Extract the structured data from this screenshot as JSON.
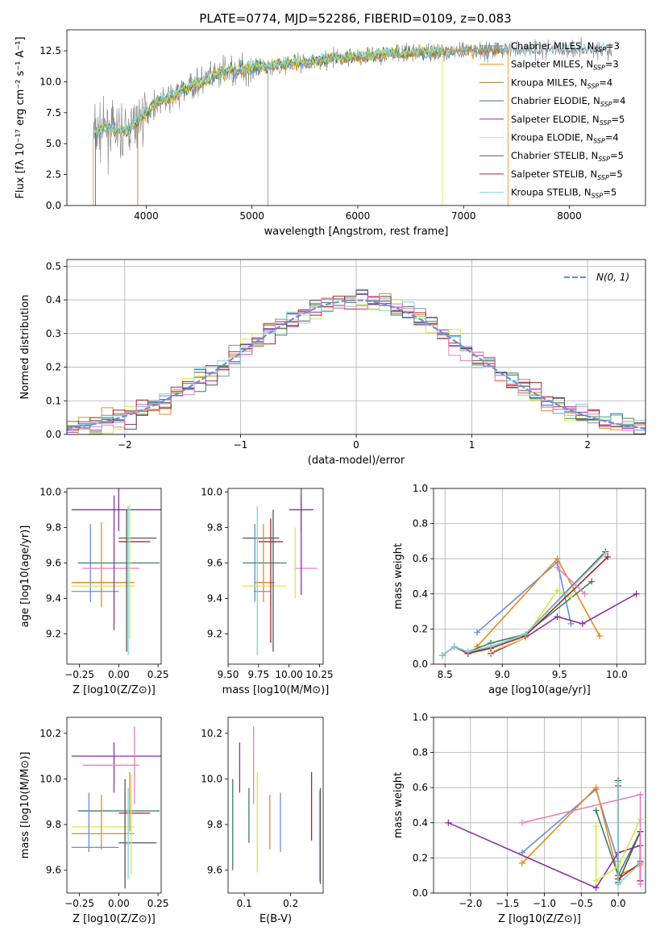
{
  "figure_title": "PLATE=0774, MJD=52286, FIBERID=0109, z=0.083",
  "colors": {
    "Chabrier MILES": "#6a8fd8",
    "Salpeter MILES": "#e8891f",
    "Kroupa MILES": "#a07a2a",
    "Chabrier ELODIE": "#3f7f5f",
    "Salpeter ELODIE": "#8e2fa8",
    "Kroupa ELODIE": "#d7e84a",
    "Chabrier STELIB": "#555555",
    "Salpeter STELIB": "#b22222",
    "Kroupa STELIB": "#7fd3d9",
    "data": "#8c8c8c",
    "pink": "#e87fbf",
    "gaussian": "#6a8fd8"
  },
  "chart_data": [
    {
      "id": "spectrum",
      "type": "line",
      "title": "PLATE=0774, MJD=52286, FIBERID=0109, z=0.083",
      "xlabel": "wavelength [Angstrom, rest frame]",
      "ylabel": "Flux [fλ 10⁻¹⁷ erg cm⁻² s⁻¹ A⁻¹]",
      "xlim": [
        3250,
        8720
      ],
      "ylim": [
        0,
        14.2
      ],
      "xticks": [
        4000,
        5000,
        6000,
        7000,
        8000
      ],
      "yticks": [
        0.0,
        2.5,
        5.0,
        7.5,
        10.0,
        12.5
      ],
      "grid": false,
      "legend_position": "right",
      "legend": [
        {
          "label": "Chabrier MILES, N",
          "sub": "SSP",
          "val": "=3"
        },
        {
          "label": "Salpeter MILES, N",
          "sub": "SSP",
          "val": "=3"
        },
        {
          "label": "Kroupa MILES, N",
          "sub": "SSP",
          "val": "=4"
        },
        {
          "label": "Chabrier ELODIE, N",
          "sub": "SSP",
          "val": "=4"
        },
        {
          "label": "Salpeter ELODIE, N",
          "sub": "SSP",
          "val": "=5"
        },
        {
          "label": "Kroupa ELODIE, N",
          "sub": "SSP",
          "val": "=4"
        },
        {
          "label": "Chabrier STELIB, N",
          "sub": "SSP",
          "val": "=5"
        },
        {
          "label": "Salpeter STELIB, N",
          "sub": "SSP",
          "val": "=5"
        },
        {
          "label": "Kroupa STELIB, N",
          "sub": "SSP",
          "val": "=5"
        }
      ],
      "continuum": {
        "x": [
          3500,
          3600,
          3700,
          3800,
          3900,
          4000,
          4100,
          4200,
          4300,
          4400,
          4500,
          4600,
          4700,
          4800,
          5000,
          5200,
          5500,
          5800,
          6100,
          6400,
          6700,
          7000,
          7400,
          7800,
          8200,
          8400
        ],
        "y": [
          5.8,
          6.2,
          6.0,
          5.9,
          6.6,
          7.5,
          8.4,
          8.6,
          9.0,
          9.6,
          9.9,
          10.3,
          10.7,
          10.9,
          11.1,
          11.3,
          11.6,
          11.9,
          12.1,
          12.3,
          12.4,
          12.5,
          12.6,
          12.6,
          12.6,
          12.5
        ]
      }
    },
    {
      "id": "residuals",
      "type": "histogram",
      "xlabel": "(data-model)/error",
      "ylabel": "Normed distribution",
      "xlim": [
        -2.5,
        2.5
      ],
      "ylim": [
        0,
        0.52
      ],
      "xticks": [
        -2,
        -1,
        0,
        1,
        2
      ],
      "yticks": [
        0.0,
        0.1,
        0.2,
        0.3,
        0.4,
        0.5
      ],
      "grid": true,
      "legend_position": "top-right",
      "gaussian_label": "N(0, 1)",
      "bin_width": 0.1
    },
    {
      "id": "age-vs-Z",
      "type": "errorbar",
      "xlabel": "Z [log10(Z/Z⊙)]",
      "ylabel": "age  [log10(age/yr)]",
      "xlim": [
        -0.33,
        0.27
      ],
      "ylim": [
        9.03,
        10.02
      ],
      "xticks": [
        -0.25,
        0.0,
        0.25
      ],
      "yticks": [
        9.2,
        9.4,
        9.6,
        9.8,
        10.0
      ],
      "points": [
        {
          "series": "Salpeter ELODIE",
          "x": 0.0,
          "y": 9.9,
          "xerr": 0.3,
          "yerr": 0.12
        },
        {
          "series": "Chabrier STELIB",
          "x": 0.12,
          "y": 9.74,
          "xerr": 0.12,
          "yerr": 0.0
        },
        {
          "series": "Salpeter STELIB",
          "x": 0.1,
          "y": 9.72,
          "xerr": 0.1,
          "yerr": 0.0
        },
        {
          "series": "Chabrier MILES",
          "x": -0.18,
          "y": 9.6,
          "xerr": 0.0,
          "yerr": 0.22
        },
        {
          "series": "Chabrier ELODIE",
          "x": 0.0,
          "y": 9.6,
          "xerr": 0.26,
          "yerr": 0.0
        },
        {
          "series": "Salpeter MILES",
          "x": -0.11,
          "y": 9.59,
          "xerr": 0.0,
          "yerr": 0.24
        },
        {
          "series": "pink",
          "x": -0.05,
          "y": 9.57,
          "xerr": 0.18,
          "yerr": 0.0
        },
        {
          "series": "Salpeter MILES",
          "x": -0.1,
          "y": 9.49,
          "xerr": 0.2,
          "yerr": 0.0
        },
        {
          "series": "Kroupa ELODIE",
          "x": -0.1,
          "y": 9.47,
          "xerr": 0.2,
          "yerr": 0.0
        },
        {
          "series": "Chabrier MILES",
          "x": -0.15,
          "y": 9.44,
          "xerr": 0.15,
          "yerr": 0.0
        },
        {
          "series": "Chabrier STELIB",
          "x": 0.05,
          "y": 9.5,
          "xerr": 0.0,
          "yerr": 0.4
        },
        {
          "series": "Kroupa STELIB",
          "x": 0.06,
          "y": 9.5,
          "xerr": 0.0,
          "yerr": 0.42
        },
        {
          "series": "Kroupa ELODIE",
          "x": 0.07,
          "y": 9.55,
          "xerr": 0.0,
          "yerr": 0.38
        },
        {
          "series": "Salpeter ELODIE",
          "x": -0.03,
          "y": 9.6,
          "xerr": 0.0,
          "yerr": 0.38
        }
      ]
    },
    {
      "id": "age-vs-mass",
      "type": "errorbar",
      "xlabel": "mass [log10(M/M⊙)]",
      "ylabel": "",
      "xlim": [
        9.5,
        10.28
      ],
      "ylim": [
        9.03,
        10.02
      ],
      "xticks": [
        9.5,
        9.75,
        10.0,
        10.25
      ],
      "yticks": [
        9.2,
        9.4,
        9.6,
        9.8,
        10.0
      ],
      "points": [
        {
          "series": "Salpeter ELODIE",
          "x": 10.1,
          "y": 9.9,
          "xerr": 0.1,
          "yerr": 0.12
        },
        {
          "series": "Chabrier STELIB",
          "x": 9.77,
          "y": 9.74,
          "xerr": 0.15,
          "yerr": 0.0
        },
        {
          "series": "Salpeter STELIB",
          "x": 9.85,
          "y": 9.72,
          "xerr": 0.1,
          "yerr": 0.0
        },
        {
          "series": "Chabrier MILES",
          "x": 9.72,
          "y": 9.6,
          "xerr": 0.0,
          "yerr": 0.22
        },
        {
          "series": "Chabrier ELODIE",
          "x": 9.8,
          "y": 9.6,
          "xerr": 0.18,
          "yerr": 0.0
        },
        {
          "series": "Salpeter MILES",
          "x": 9.79,
          "y": 9.6,
          "xerr": 0.0,
          "yerr": 0.22
        },
        {
          "series": "pink",
          "x": 10.14,
          "y": 9.57,
          "xerr": 0.09,
          "yerr": 0.0
        },
        {
          "series": "Salpeter MILES",
          "x": 9.8,
          "y": 9.49,
          "xerr": 0.08,
          "yerr": 0.0
        },
        {
          "series": "Kroupa ELODIE",
          "x": 9.8,
          "y": 9.47,
          "xerr": 0.18,
          "yerr": 0.0
        },
        {
          "series": "Chabrier MILES",
          "x": 9.78,
          "y": 9.44,
          "xerr": 0.07,
          "yerr": 0.0
        },
        {
          "series": "Kroupa STELIB",
          "x": 9.74,
          "y": 9.5,
          "xerr": 0.0,
          "yerr": 0.42
        },
        {
          "series": "Chabrier STELIB",
          "x": 9.87,
          "y": 9.5,
          "xerr": 0.0,
          "yerr": 0.4
        },
        {
          "series": "Salpeter STELIB",
          "x": 9.85,
          "y": 9.5,
          "xerr": 0.0,
          "yerr": 0.35
        },
        {
          "series": "Salpeter ELODIE",
          "x": 10.1,
          "y": 9.7,
          "xerr": 0.0,
          "yerr": 0.28
        },
        {
          "series": "Kroupa ELODIE",
          "x": 10.05,
          "y": 9.6,
          "xerr": 0.0,
          "yerr": 0.2
        }
      ]
    },
    {
      "id": "weight-vs-age",
      "type": "line",
      "xlabel": "age  [log10(age/yr)]",
      "ylabel": "mass weight",
      "xlim": [
        8.4,
        10.25
      ],
      "ylim": [
        0,
        1.0
      ],
      "xticks": [
        8.5,
        9.0,
        9.5,
        10.0
      ],
      "yticks": [
        0.0,
        0.2,
        0.4,
        0.6,
        0.8,
        1.0
      ],
      "grid": true,
      "series": [
        {
          "name": "Chabrier MILES",
          "x": [
            8.78,
            9.48,
            9.6
          ],
          "y": [
            0.18,
            0.58,
            0.23
          ]
        },
        {
          "name": "Salpeter MILES",
          "x": [
            8.78,
            9.48,
            9.85
          ],
          "y": [
            0.1,
            0.6,
            0.16
          ]
        },
        {
          "name": "Chabrier ELODIE",
          "x": [
            8.48,
            8.58,
            8.7,
            8.9,
            9.2,
            9.78
          ],
          "y": [
            0.05,
            0.1,
            0.07,
            0.12,
            0.17,
            0.47
          ]
        },
        {
          "name": "Salpeter ELODIE",
          "x": [
            8.9,
            9.2,
            9.48,
            9.7,
            10.17
          ],
          "y": [
            0.06,
            0.15,
            0.27,
            0.23,
            0.4
          ]
        },
        {
          "name": "Kroupa ELODIE",
          "x": [
            8.9,
            9.2,
            9.48,
            9.6
          ],
          "y": [
            0.07,
            0.15,
            0.42,
            0.38
          ]
        },
        {
          "name": "Chabrier STELIB",
          "x": [
            8.48,
            8.58,
            8.7,
            8.9,
            9.2,
            9.9
          ],
          "y": [
            0.05,
            0.1,
            0.06,
            0.1,
            0.17,
            0.64
          ]
        },
        {
          "name": "Salpeter STELIB",
          "x": [
            8.48,
            8.58,
            8.7,
            8.9,
            9.2,
            9.92
          ],
          "y": [
            0.05,
            0.1,
            0.06,
            0.09,
            0.16,
            0.61
          ]
        },
        {
          "name": "Kroupa STELIB",
          "x": [
            8.48,
            8.58,
            8.7,
            8.9,
            9.2,
            9.9
          ],
          "y": [
            0.05,
            0.1,
            0.07,
            0.1,
            0.17,
            0.63
          ]
        },
        {
          "name": "pink",
          "x": [
            9.48,
            9.72
          ],
          "y": [
            0.55,
            0.4
          ]
        }
      ]
    },
    {
      "id": "mass-vs-Z",
      "type": "errorbar",
      "xlabel": "Z [log10(Z/Z⊙)]",
      "ylabel": "mass [log10(M/M⊙)]",
      "xlim": [
        -0.33,
        0.27
      ],
      "ylim": [
        9.5,
        10.27
      ],
      "xticks": [
        -0.25,
        0.0,
        0.25
      ],
      "yticks": [
        9.6,
        9.8,
        10.0,
        10.2
      ],
      "points": [
        {
          "series": "Salpeter ELODIE",
          "x": 0.0,
          "y": 10.1,
          "xerr": 0.3,
          "yerr": 0.0
        },
        {
          "series": "Salpeter ELODIE",
          "x": -0.03,
          "y": 10.05,
          "xerr": 0.0,
          "yerr": 0.11
        },
        {
          "series": "pink",
          "x": -0.05,
          "y": 10.06,
          "xerr": 0.18,
          "yerr": 0.0
        },
        {
          "series": "pink",
          "x": 0.1,
          "y": 10.06,
          "xerr": 0.0,
          "yerr": 0.17
        },
        {
          "series": "Chabrier ELODIE",
          "x": 0.0,
          "y": 9.86,
          "xerr": 0.26,
          "yerr": 0.0
        },
        {
          "series": "Salpeter STELIB",
          "x": 0.1,
          "y": 9.85,
          "xerr": 0.1,
          "yerr": 0.0
        },
        {
          "series": "Kroupa ELODIE",
          "x": -0.1,
          "y": 9.79,
          "xerr": 0.2,
          "yerr": 0.0
        },
        {
          "series": "Salpeter MILES",
          "x": -0.1,
          "y": 9.76,
          "xerr": 0.2,
          "yerr": 0.0
        },
        {
          "series": "Chabrier STELIB",
          "x": 0.12,
          "y": 9.72,
          "xerr": 0.12,
          "yerr": 0.0
        },
        {
          "series": "Chabrier MILES",
          "x": -0.15,
          "y": 9.7,
          "xerr": 0.15,
          "yerr": 0.0
        },
        {
          "series": "Chabrier MILES",
          "x": -0.19,
          "y": 9.81,
          "xerr": 0.0,
          "yerr": 0.13
        },
        {
          "series": "Salpeter MILES",
          "x": -0.11,
          "y": 9.81,
          "xerr": 0.0,
          "yerr": 0.12
        },
        {
          "series": "Kroupa STELIB",
          "x": 0.06,
          "y": 9.76,
          "xerr": 0.0,
          "yerr": 0.2
        },
        {
          "series": "Chabrier STELIB",
          "x": 0.04,
          "y": 9.76,
          "xerr": 0.0,
          "yerr": 0.24
        },
        {
          "series": "Kroupa ELODIE",
          "x": 0.08,
          "y": 9.8,
          "xerr": 0.0,
          "yerr": 0.22
        },
        {
          "series": "Salpeter MILES",
          "x": 0.07,
          "y": 9.9,
          "xerr": 0.0,
          "yerr": 0.13
        }
      ]
    },
    {
      "id": "mass-vs-ebv",
      "type": "errorbar",
      "xlabel": "E(B-V)",
      "ylabel": "",
      "xlim": [
        0.065,
        0.27
      ],
      "ylim": [
        9.5,
        10.27
      ],
      "xticks": [
        0.1,
        0.2
      ],
      "yticks": [
        9.6,
        9.8,
        10.0,
        10.2
      ],
      "points": [
        {
          "series": "Chabrier ELODIE",
          "x": 0.075,
          "y": 9.8,
          "xerr": 0.0,
          "yerr": 0.2
        },
        {
          "series": "Salpeter ELODIE",
          "x": 0.09,
          "y": 10.05,
          "xerr": 0.0,
          "yerr": 0.11
        },
        {
          "series": "Chabrier ELODIE",
          "x": 0.11,
          "y": 9.84,
          "xerr": 0.0,
          "yerr": 0.12
        },
        {
          "series": "pink",
          "x": 0.12,
          "y": 10.06,
          "xerr": 0.0,
          "yerr": 0.17
        },
        {
          "series": "Kroupa ELODIE",
          "x": 0.128,
          "y": 9.81,
          "xerr": 0.0,
          "yerr": 0.22
        },
        {
          "series": "Salpeter MILES",
          "x": 0.155,
          "y": 9.81,
          "xerr": 0.0,
          "yerr": 0.12
        },
        {
          "series": "Chabrier MILES",
          "x": 0.178,
          "y": 9.81,
          "xerr": 0.0,
          "yerr": 0.13
        },
        {
          "series": "Salpeter STELIB",
          "x": 0.245,
          "y": 9.88,
          "xerr": 0.0,
          "yerr": 0.15
        },
        {
          "series": "Kroupa STELIB",
          "x": 0.262,
          "y": 9.75,
          "xerr": 0.0,
          "yerr": 0.2
        },
        {
          "series": "Chabrier STELIB",
          "x": 0.264,
          "y": 9.75,
          "xerr": 0.0,
          "yerr": 0.21
        }
      ]
    },
    {
      "id": "weight-vs-Z",
      "type": "line",
      "xlabel": "Z [log10(Z/Z⊙)]",
      "ylabel": "mass weight",
      "xlim": [
        -2.5,
        0.37
      ],
      "ylim": [
        0,
        1.0
      ],
      "xticks": [
        -2.0,
        -1.5,
        -1.0,
        -0.5,
        0.0
      ],
      "yticks": [
        0.0,
        0.2,
        0.4,
        0.6,
        0.8,
        1.0
      ],
      "grid": true,
      "series": [
        {
          "name": "Chabrier MILES",
          "x": [
            -1.3,
            -0.3,
            0.0
          ],
          "y": [
            0.23,
            0.59,
            0.18
          ]
        },
        {
          "name": "Salpeter MILES",
          "x": [
            -1.3,
            -0.3,
            0.0,
            0.3
          ],
          "y": [
            0.17,
            0.6,
            0.1,
            0.16
          ]
        },
        {
          "name": "Chabrier ELODIE",
          "x": [
            -0.3,
            0.0,
            0.3,
            0.3
          ],
          "y": [
            0.47,
            0.1,
            0.35,
            0.07
          ]
        },
        {
          "name": "Salpeter ELODIE",
          "x": [
            -2.3,
            -0.3,
            0.0,
            0.3,
            0.3
          ],
          "y": [
            0.4,
            0.03,
            0.23,
            0.27,
            0.07
          ]
        },
        {
          "name": "Kroupa ELODIE",
          "x": [
            -0.3,
            -0.3,
            0.0,
            0.3
          ],
          "y": [
            0.38,
            0.07,
            0.15,
            0.42
          ]
        },
        {
          "name": "Chabrier STELIB",
          "x": [
            0.0,
            0.0,
            0.3,
            0.3
          ],
          "y": [
            0.64,
            0.06,
            0.35,
            0.18
          ]
        },
        {
          "name": "Salpeter STELIB",
          "x": [
            0.0,
            0.0,
            0.3
          ],
          "y": [
            0.61,
            0.08,
            0.17
          ]
        },
        {
          "name": "Kroupa STELIB",
          "x": [
            0.0,
            0.0,
            0.3
          ],
          "y": [
            0.63,
            0.05,
            0.17
          ]
        },
        {
          "name": "pink",
          "x": [
            -1.3,
            0.3,
            0.3
          ],
          "y": [
            0.4,
            0.56,
            0.05
          ]
        }
      ]
    }
  ]
}
